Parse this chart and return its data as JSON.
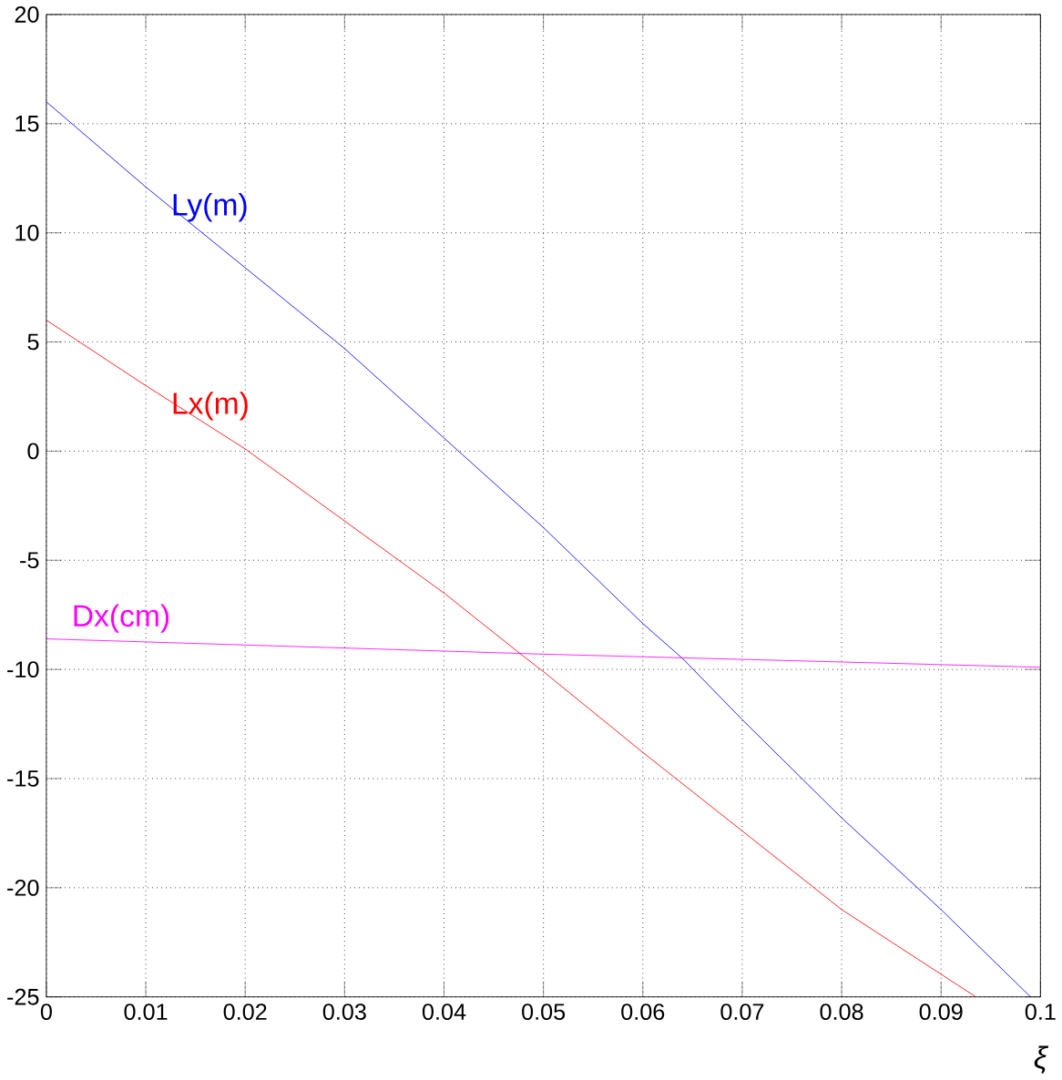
{
  "chart_data": {
    "type": "line",
    "xlabel": "ξ",
    "xlim": [
      0,
      0.1
    ],
    "ylim": [
      -25,
      20
    ],
    "xticks": [
      0,
      0.01,
      0.02,
      0.03,
      0.04,
      0.05,
      0.06,
      0.07,
      0.08,
      0.09,
      0.1
    ],
    "yticks": [
      -25,
      -20,
      -15,
      -10,
      -5,
      0,
      5,
      10,
      15,
      20
    ],
    "grid": true,
    "marker": "none",
    "line_style": "solid",
    "series": [
      {
        "name": "Ly(m)",
        "color": "#0000ff",
        "x": [
          0,
          0.01,
          0.02,
          0.03,
          0.04,
          0.05,
          0.06,
          0.064,
          0.07,
          0.08,
          0.09,
          0.099
        ],
        "values": [
          16,
          12.1,
          8.4,
          4.7,
          0.6,
          -3.5,
          -7.9,
          -9.5,
          -12.3,
          -16.8,
          -21.0,
          -25
        ]
      },
      {
        "name": "Lx(m)",
        "color": "#ff0000",
        "x": [
          0,
          0.01,
          0.02,
          0.03,
          0.04,
          0.048,
          0.05,
          0.06,
          0.07,
          0.08,
          0.0935
        ],
        "values": [
          6,
          3.0,
          0.1,
          -3.2,
          -6.5,
          -9.4,
          -10.1,
          -13.8,
          -17.4,
          -21.0,
          -25
        ]
      },
      {
        "name": "Dx(cm)",
        "color": "#ff00ff",
        "x": [
          0,
          0.05,
          0.1
        ],
        "values": [
          -8.6,
          -9.3,
          -9.9
        ]
      }
    ]
  }
}
